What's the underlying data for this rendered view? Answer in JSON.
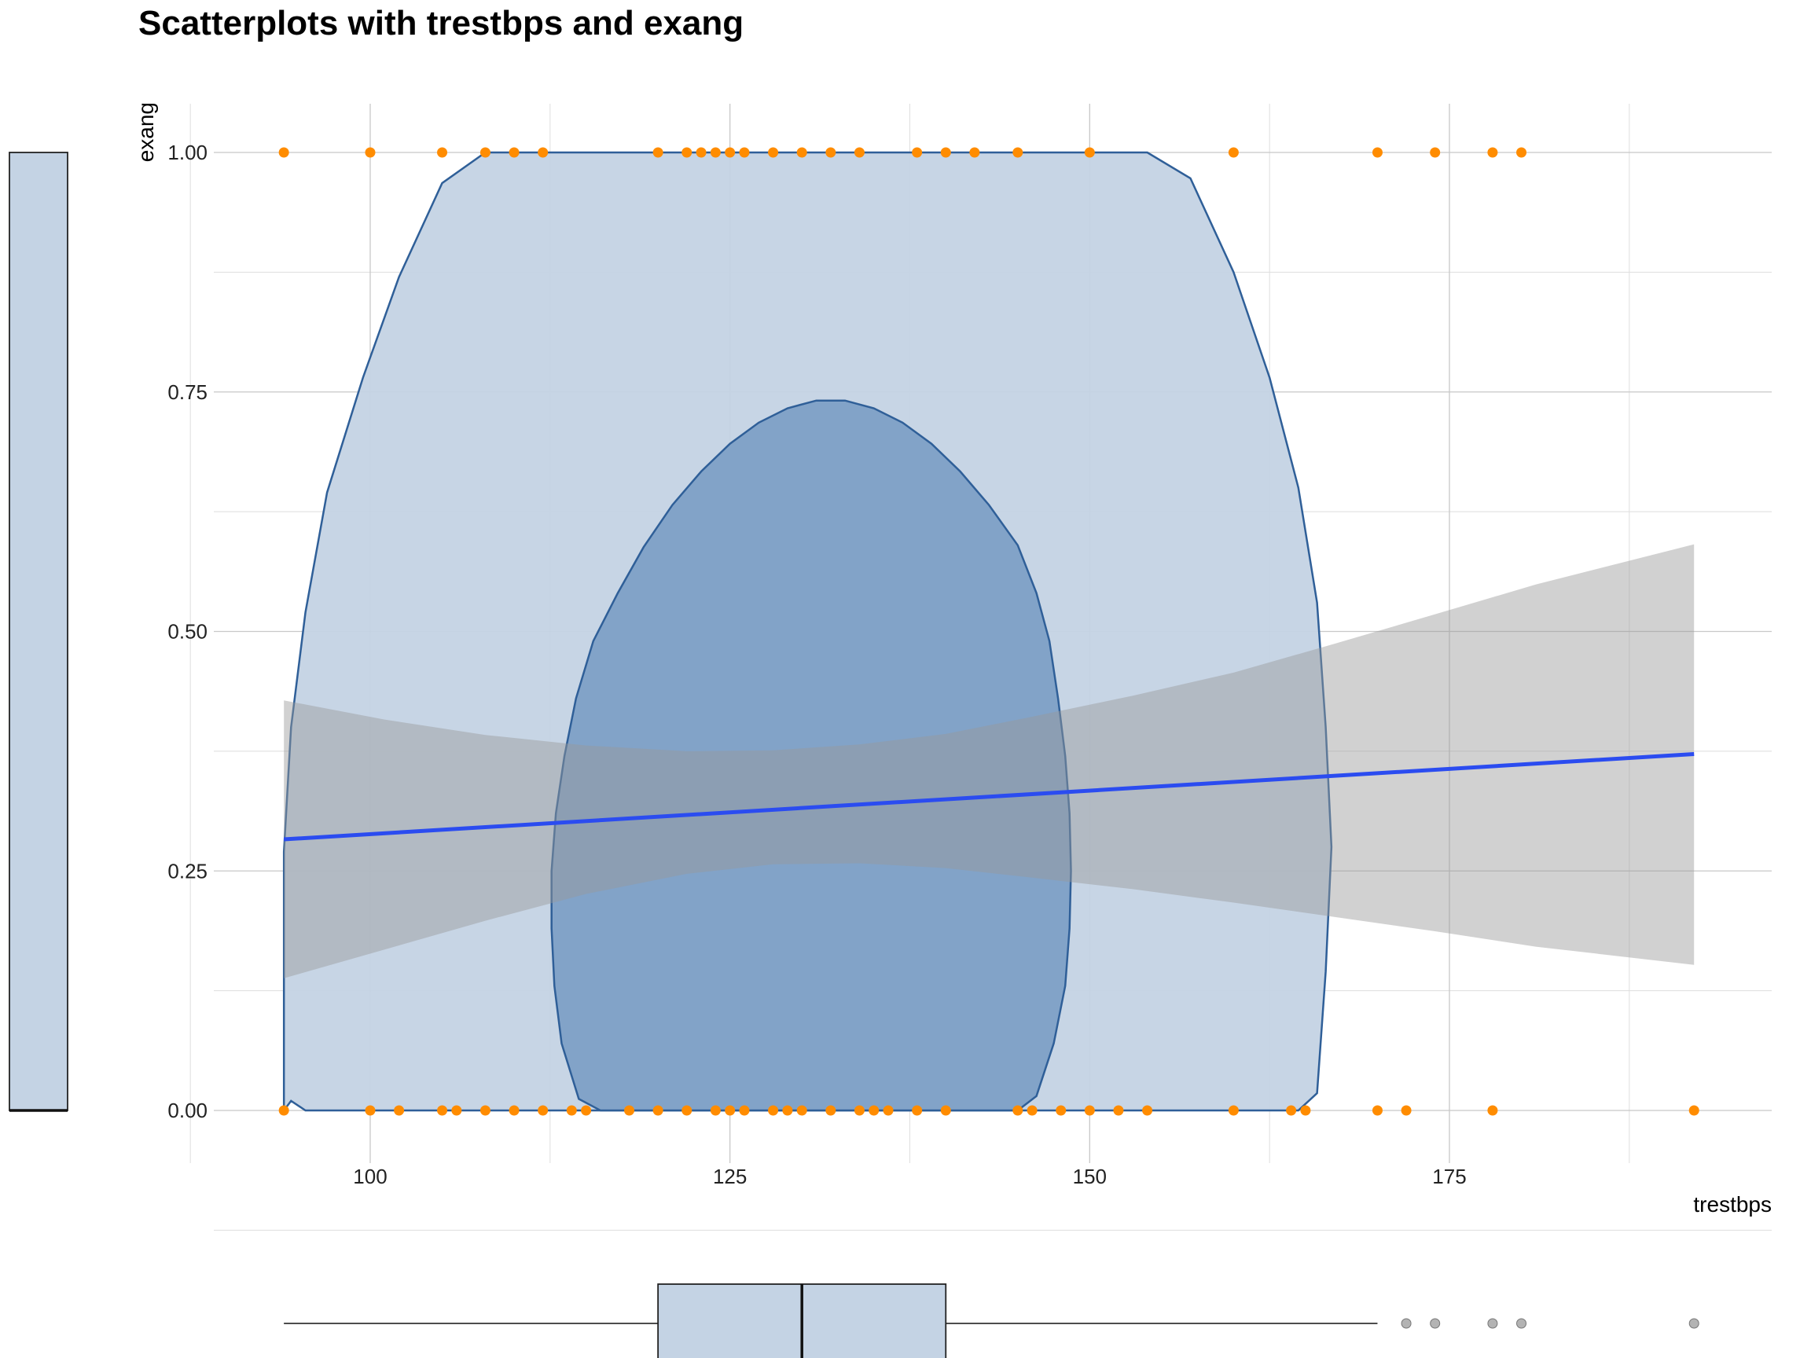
{
  "chart_data": {
    "type": "scatter",
    "title": "Scatterplots with trestbps and exang",
    "xlabel": "trestbps",
    "ylabel": "exang",
    "xlim": [
      90,
      197
    ],
    "ylim": [
      -0.05,
      1.05
    ],
    "x_ticks": [
      100,
      125,
      150,
      175
    ],
    "y_ticks": [
      0.0,
      0.25,
      0.5,
      0.75,
      1.0
    ],
    "y_tick_labels": [
      "0.00",
      "0.25",
      "0.50",
      "0.75",
      "1.00"
    ],
    "grid": true,
    "legend": "none",
    "colors": {
      "points": "#ff8c00",
      "regression_line": "#2b4cf0",
      "confidence_band": "#999999",
      "density_outer": "#c4d3e4",
      "density_inner": "#7ea0c6",
      "density_stroke": "#2f5f98",
      "marginal_box": "#c4d3e4"
    },
    "points_exang_1": [
      94,
      100,
      105,
      108,
      110,
      112,
      120,
      122,
      123,
      124,
      125,
      126,
      128,
      130,
      132,
      134,
      138,
      140,
      142,
      145,
      150,
      160,
      170,
      174,
      178,
      180
    ],
    "points_exang_0": [
      94,
      100,
      102,
      105,
      106,
      108,
      110,
      112,
      114,
      115,
      118,
      120,
      122,
      124,
      125,
      126,
      128,
      129,
      130,
      132,
      134,
      135,
      136,
      138,
      140,
      145,
      146,
      148,
      150,
      152,
      154,
      160,
      164,
      165,
      170,
      172,
      178,
      192
    ],
    "regression": {
      "x": [
        94,
        192
      ],
      "y": [
        0.283,
        0.372
      ],
      "band_x": [
        94,
        101,
        108,
        115,
        122,
        128,
        134,
        140,
        146,
        153,
        160,
        167,
        174,
        181,
        192
      ],
      "band_lower": [
        0.138,
        0.168,
        0.198,
        0.226,
        0.247,
        0.257,
        0.258,
        0.253,
        0.243,
        0.231,
        0.217,
        0.202,
        0.187,
        0.171,
        0.152
      ],
      "band_upper": [
        0.428,
        0.408,
        0.392,
        0.381,
        0.375,
        0.376,
        0.382,
        0.393,
        0.411,
        0.433,
        0.457,
        0.487,
        0.518,
        0.549,
        0.591
      ]
    },
    "density_outer": [
      [
        94,
        0.0
      ],
      [
        94,
        0.14
      ],
      [
        94,
        0.27
      ],
      [
        94.5,
        0.4
      ],
      [
        95.5,
        0.52
      ],
      [
        97,
        0.645
      ],
      [
        99.5,
        0.765
      ],
      [
        102,
        0.87
      ],
      [
        105,
        0.968
      ],
      [
        108,
        1.0
      ],
      [
        154,
        1.0
      ],
      [
        157,
        0.973
      ],
      [
        160,
        0.875
      ],
      [
        162.5,
        0.765
      ],
      [
        164.5,
        0.65
      ],
      [
        165.8,
        0.53
      ],
      [
        166.4,
        0.4
      ],
      [
        166.8,
        0.275
      ],
      [
        166.4,
        0.145
      ],
      [
        165.8,
        0.018
      ],
      [
        164.5,
        0.0
      ],
      [
        95.5,
        0.0
      ],
      [
        94.5,
        0.01
      ]
    ],
    "density_inner": [
      [
        116,
        0.0
      ],
      [
        114.5,
        0.012
      ],
      [
        113.3,
        0.07
      ],
      [
        112.8,
        0.13
      ],
      [
        112.6,
        0.19
      ],
      [
        112.6,
        0.25
      ],
      [
        112.9,
        0.31
      ],
      [
        113.5,
        0.37
      ],
      [
        114.3,
        0.43
      ],
      [
        115.5,
        0.49
      ],
      [
        117.2,
        0.54
      ],
      [
        119,
        0.588
      ],
      [
        121,
        0.632
      ],
      [
        123,
        0.667
      ],
      [
        125,
        0.696
      ],
      [
        127,
        0.718
      ],
      [
        129,
        0.733
      ],
      [
        131,
        0.741
      ],
      [
        133,
        0.741
      ],
      [
        135,
        0.733
      ],
      [
        137,
        0.718
      ],
      [
        139,
        0.696
      ],
      [
        141,
        0.667
      ],
      [
        143,
        0.632
      ],
      [
        145,
        0.59
      ],
      [
        146.3,
        0.54
      ],
      [
        147.2,
        0.49
      ],
      [
        147.8,
        0.43
      ],
      [
        148.3,
        0.37
      ],
      [
        148.6,
        0.31
      ],
      [
        148.7,
        0.25
      ],
      [
        148.6,
        0.19
      ],
      [
        148.3,
        0.13
      ],
      [
        147.5,
        0.07
      ],
      [
        146.3,
        0.015
      ],
      [
        145,
        0.0
      ]
    ],
    "marginal_x_boxplot": {
      "min": 94,
      "q1": 120,
      "median": 130,
      "q3": 140,
      "whisker_high": 170,
      "outliers": [
        172,
        174,
        178,
        180,
        192
      ]
    },
    "marginal_y_boxplot": {
      "q1": 0,
      "median": 0,
      "q3": 1
    }
  }
}
